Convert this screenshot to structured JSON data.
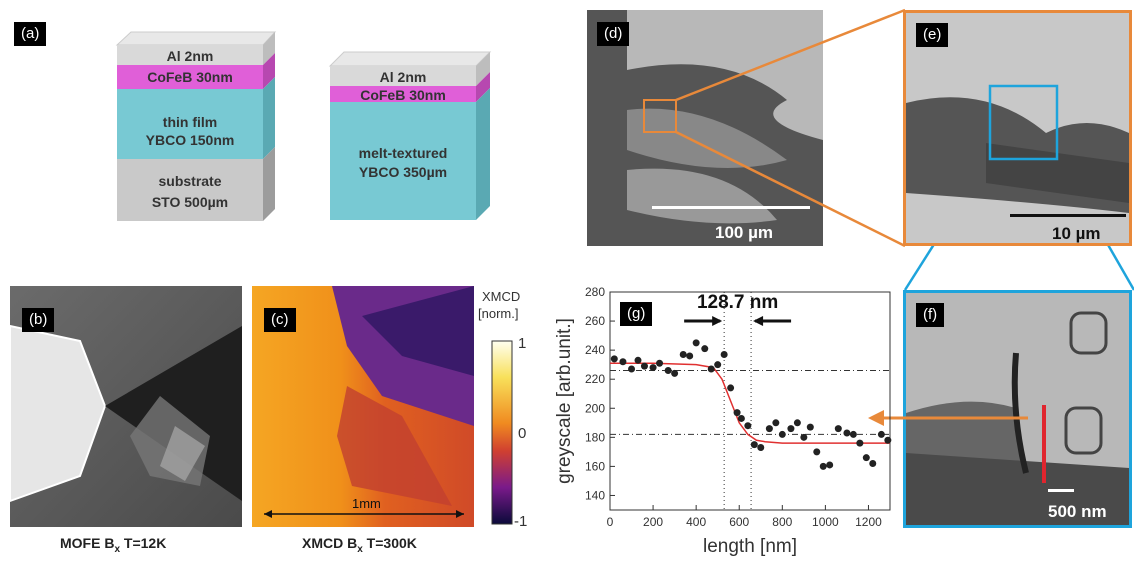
{
  "panel_a": {
    "tag": "(a)",
    "stack1": [
      "Al 2nm",
      "CoFeB 30nm",
      "thin film",
      "YBCO 150nm",
      "substrate",
      "STO 500µm"
    ],
    "stack2": [
      "Al 2nm",
      "CoFeB 30nm",
      "melt-textured",
      "YBCO 350µm"
    ]
  },
  "panel_b": {
    "tag": "(b)",
    "caption_main": "MOFE B",
    "caption_sub": "x",
    "caption_rest": " T=12K"
  },
  "panel_c": {
    "tag": "(c)",
    "caption_main": "XMCD B",
    "caption_sub": "x",
    "caption_rest": " T=300K",
    "scale_label": "1mm",
    "cbar_title1": "XMCD",
    "cbar_title2": "[norm.]",
    "cbar_ticks": [
      "1",
      "0",
      "-1"
    ]
  },
  "panel_d": {
    "tag": "(d)",
    "scale_label": "100 µm"
  },
  "panel_e": {
    "tag": "(e)",
    "scale_label": "10 µm"
  },
  "panel_f": {
    "tag": "(f)",
    "scale_label": "500 nm"
  },
  "panel_g": {
    "tag": "(g)",
    "annotation": "128.7 nm",
    "colors": {
      "fit": "#e03030",
      "points": "#222222",
      "arrow": "#e8893a"
    }
  },
  "chart_data": {
    "type": "scatter",
    "xlabel": "length [nm]",
    "ylabel": "greyscale [arb.unit.]",
    "xlim": [
      0,
      1300
    ],
    "ylim": [
      130,
      280
    ],
    "xticks": [
      0,
      200,
      400,
      600,
      800,
      1000,
      1200
    ],
    "yticks": [
      140,
      160,
      180,
      200,
      220,
      240,
      260,
      280
    ],
    "x": [
      20,
      60,
      100,
      130,
      160,
      200,
      230,
      270,
      300,
      340,
      370,
      400,
      440,
      470,
      500,
      530,
      560,
      590,
      610,
      640,
      670,
      700,
      740,
      770,
      800,
      840,
      870,
      900,
      930,
      960,
      990,
      1020,
      1060,
      1100,
      1130,
      1160,
      1190,
      1220,
      1260,
      1290
    ],
    "y": [
      234,
      232,
      227,
      233,
      229,
      228,
      231,
      226,
      224,
      237,
      236,
      245,
      241,
      227,
      230,
      237,
      214,
      197,
      193,
      188,
      175,
      173,
      186,
      190,
      182,
      186,
      190,
      180,
      187,
      170,
      160,
      161,
      186,
      183,
      182,
      176,
      166,
      162,
      182,
      178
    ],
    "fit_x": [
      0,
      200,
      400,
      480,
      520,
      560,
      600,
      640,
      680,
      720,
      800,
      1000,
      1300
    ],
    "fit_y": [
      231,
      231,
      230,
      228,
      220,
      205,
      190,
      182,
      178,
      177,
      176,
      176,
      176
    ],
    "hlines": [
      226,
      182
    ],
    "vlines": [
      530,
      655
    ]
  }
}
